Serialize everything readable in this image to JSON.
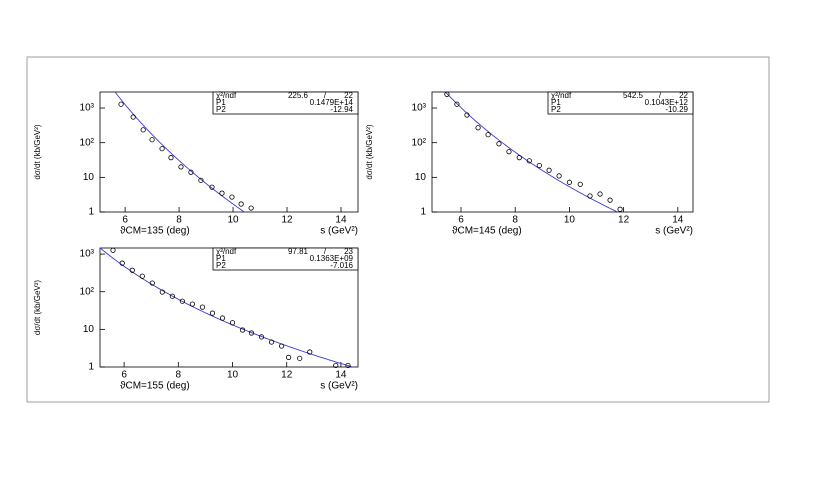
{
  "chart_data": [
    {
      "type": "scatter",
      "ylog": true,
      "color": "#000000",
      "fit_color": "#3a3ad6",
      "xlabel": "ϑCM=135 (deg)",
      "xunit": "s (GeV²)",
      "ylabel": "dσ/dt (kb/GeV²)",
      "xlim": [
        5.07,
        14.63
      ],
      "xticks": [
        6,
        8,
        10,
        12,
        14
      ],
      "ylim": [
        1,
        2900
      ],
      "yticks": [
        1,
        10,
        {
          "value": 100,
          "label": "10²"
        },
        {
          "value": 1000,
          "label": "10³"
        }
      ],
      "x": [
        5.85,
        6.3,
        6.67,
        7.0,
        7.37,
        7.7,
        8.07,
        8.44,
        8.81,
        9.22,
        9.59,
        9.96,
        10.3,
        10.67
      ],
      "values": [
        1290,
        550,
        235,
        122,
        67,
        37,
        20,
        14,
        8.2,
        5.2,
        3.5,
        2.7,
        1.7,
        1.3
      ],
      "stats": {
        "labels": [
          "χ²/ndf",
          "P1",
          "P2"
        ],
        "chi2": 225.6,
        "sep": "/",
        "ndf": 22,
        "p1": {
          "value": 14790000000000,
          "label": "0.1479E+14"
        },
        "p2": -12.94
      }
    },
    {
      "type": "scatter",
      "ylog": true,
      "color": "#000000",
      "fit_color": "#3a3ad6",
      "xlabel": "ϑCM=145 (deg)",
      "xunit": "s (GeV²)",
      "ylabel": "dσ/dt (kb/GeV²)",
      "xlim": [
        4.93,
        14.56
      ],
      "xticks": [
        6,
        8,
        10,
        12,
        14
      ],
      "ylim": [
        1,
        2900
      ],
      "yticks": [
        1,
        10,
        {
          "value": 100,
          "label": "10²"
        },
        {
          "value": 1000,
          "label": "10³"
        }
      ],
      "x": [
        5.48,
        5.85,
        6.22,
        6.63,
        7.0,
        7.4,
        7.77,
        8.15,
        8.52,
        8.89,
        9.25,
        9.62,
        10.0,
        10.4,
        10.76,
        11.13,
        11.5,
        11.87
      ],
      "values": [
        2500,
        1290,
        630,
        270,
        170,
        93,
        55,
        37,
        30,
        22,
        16,
        11,
        7.2,
        6.3,
        2.9,
        3.3,
        2.2,
        1.2
      ],
      "stats": {
        "labels": [
          "χ²/ndf",
          "P1",
          "P2"
        ],
        "chi2": 542.5,
        "sep": "/",
        "ndf": 22,
        "p1": {
          "value": 104300000000,
          "label": "0.1043E+12"
        },
        "p2": -10.29
      }
    },
    {
      "type": "scatter",
      "ylog": true,
      "color": "#000000",
      "fit_color": "#3a3ad6",
      "xlabel": "ϑCM=155 (deg)",
      "xunit": "s (GeV²)",
      "ylabel": "dσ/dt (kb/GeV²)",
      "xlim": [
        5.11,
        14.63
      ],
      "xticks": [
        6,
        8,
        10,
        12,
        14
      ],
      "ylim": [
        1,
        1450
      ],
      "yticks": [
        1,
        10,
        {
          "value": 100,
          "label": "10²"
        },
        {
          "value": 1000,
          "label": "10³"
        }
      ],
      "x": [
        5.59,
        5.93,
        6.3,
        6.67,
        7.04,
        7.41,
        7.78,
        8.15,
        8.52,
        8.89,
        9.26,
        9.63,
        10.0,
        10.37,
        10.7,
        11.07,
        11.44,
        11.81,
        12.07,
        12.48,
        12.85,
        13.81,
        14.26
      ],
      "values": [
        1260,
        575,
        372,
        258,
        170,
        98,
        76,
        56,
        47,
        39,
        27,
        20,
        15,
        9.6,
        8,
        6.3,
        4.6,
        3.6,
        1.8,
        1.7,
        2.5,
        1.1,
        1.1
      ],
      "stats": {
        "labels": [
          "χ²/ndf",
          "P1",
          "P2"
        ],
        "chi2": 97.81,
        "sep": "/",
        "ndf": 23,
        "p1": {
          "value": 136300000,
          "label": "0.1363E+09"
        },
        "p2": -7.016
      }
    }
  ]
}
